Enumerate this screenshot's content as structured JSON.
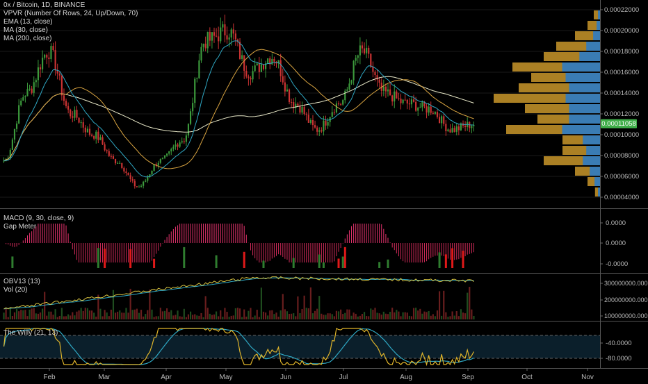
{
  "chart_title": "0x / Bitcoin, 1D, BINANCE",
  "indicators": {
    "main": [
      "VPVR (Number Of Rows, 24, Up/Down, 70)",
      "EMA (13, close)",
      "MA (30, close)",
      "MA (200, close)"
    ],
    "macd": [
      "MACD (9, 30, close, 9)",
      "Gap Meter"
    ],
    "obv": [
      "OBV13 (13)",
      "Vol (20)"
    ],
    "willy": [
      "The Willy (21, 13)"
    ]
  },
  "price_axis": {
    "ticks": [
      "0.00022000",
      "0.00020000",
      "0.00018000",
      "0.00016000",
      "0.00014000",
      "0.00012000",
      "0.00010000",
      "0.00008000",
      "0.00006000",
      "0.00004000"
    ],
    "current_price": "0.00011058"
  },
  "macd_axis": {
    "ticks": [
      "0.0000",
      "0.0000",
      "-0.0000"
    ]
  },
  "obv_axis": {
    "ticks": [
      "300000000.0000",
      "200000000.0000",
      "100000000.0000"
    ]
  },
  "willy_axis": {
    "ticks": [
      "-40.0000",
      "-80.0000"
    ]
  },
  "time_axis": {
    "labels": [
      "Feb",
      "Mar",
      "Apr",
      "May",
      "Jun",
      "Jul",
      "Aug",
      "Sep",
      "Oct",
      "Nov"
    ]
  },
  "colors": {
    "up": "#3c9a3c",
    "down": "#cc3333",
    "ema": "#2fa8c4",
    "ma30": "#d9a441",
    "ma200": "#e8e8c8",
    "vp_up": "#c9962a",
    "vp_down": "#2e7bc4",
    "grid": "#3a3a3a",
    "price_tag": "#3fae49"
  },
  "chart_data": {
    "type": "candlestick",
    "title": "0x / Bitcoin, 1D, BINANCE",
    "y_range": [
      4e-05,
      0.00022
    ],
    "x_range": [
      "Jan",
      "Nov"
    ],
    "current_price": 0.00011058,
    "close_series_approx": [
      {
        "date": "Jan-early",
        "value": 7.5e-05
      },
      {
        "date": "Jan-mid",
        "value": 0.00014
      },
      {
        "date": "Jan-late",
        "value": 0.00018
      },
      {
        "date": "Feb",
        "value": 0.00012
      },
      {
        "date": "Feb-late",
        "value": 0.0001
      },
      {
        "date": "Mar",
        "value": 7.5e-05
      },
      {
        "date": "Mar-late",
        "value": 5e-05
      },
      {
        "date": "Apr",
        "value": 7.5e-05
      },
      {
        "date": "Apr-late",
        "value": 9.5e-05
      },
      {
        "date": "May",
        "value": 0.00019
      },
      {
        "date": "May-mid",
        "value": 0.0002
      },
      {
        "date": "May-late",
        "value": 0.00016
      },
      {
        "date": "Jun",
        "value": 0.000175
      },
      {
        "date": "Jun-mid",
        "value": 0.00013
      },
      {
        "date": "Jun-late",
        "value": 0.000105
      },
      {
        "date": "Jul",
        "value": 0.00013
      },
      {
        "date": "Jul-mid",
        "value": 0.00018
      },
      {
        "date": "Jul-late",
        "value": 0.00014
      },
      {
        "date": "Aug",
        "value": 0.00013
      },
      {
        "date": "Aug-mid",
        "value": 0.000125
      },
      {
        "date": "Aug-late",
        "value": 0.000105
      },
      {
        "date": "Sep",
        "value": 0.00011
      }
    ],
    "volume_profile": [
      {
        "price": 0.000215,
        "up": 0.05,
        "down": 0.03
      },
      {
        "price": 0.000205,
        "up": 0.1,
        "down": 0.05
      },
      {
        "price": 0.000195,
        "up": 0.2,
        "down": 0.1
      },
      {
        "price": 0.000185,
        "up": 0.35,
        "down": 0.2
      },
      {
        "price": 0.000175,
        "up": 0.45,
        "down": 0.3
      },
      {
        "price": 0.000165,
        "up": 0.7,
        "down": 0.55
      },
      {
        "price": 0.000155,
        "up": 0.55,
        "down": 0.5
      },
      {
        "price": 0.000145,
        "up": 0.65,
        "down": 0.45
      },
      {
        "price": 0.000135,
        "up": 0.85,
        "down": 0.5
      },
      {
        "price": 0.000125,
        "up": 0.6,
        "down": 0.45
      },
      {
        "price": 0.000115,
        "up": 0.5,
        "down": 0.45
      },
      {
        "price": 0.000105,
        "up": 0.75,
        "down": 0.55
      },
      {
        "price": 9.5e-05,
        "up": 0.3,
        "down": 0.25
      },
      {
        "price": 8.5e-05,
        "up": 0.3,
        "down": 0.2
      },
      {
        "price": 7.5e-05,
        "up": 0.45,
        "down": 0.25
      },
      {
        "price": 6.5e-05,
        "up": 0.2,
        "down": 0.15
      },
      {
        "price": 5.5e-05,
        "up": 0.1,
        "down": 0.08
      },
      {
        "price": 4.5e-05,
        "up": 0.04,
        "down": 0.03
      }
    ]
  }
}
